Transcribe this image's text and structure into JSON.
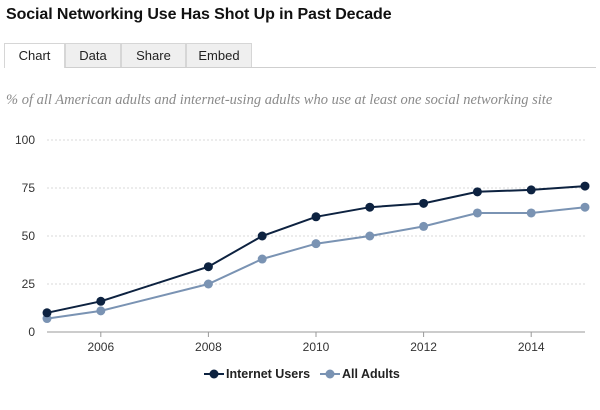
{
  "title": "Social Networking Use Has Shot Up in Past Decade",
  "tabs": [
    {
      "label": "Chart",
      "active": true
    },
    {
      "label": "Data",
      "active": false
    },
    {
      "label": "Share",
      "active": false
    },
    {
      "label": "Embed",
      "active": false
    }
  ],
  "subtitle": "% of all American adults and internet-using adults who use at least one social networking site",
  "colors": {
    "internet_users": "#0d2240",
    "all_adults": "#7a93b3",
    "grid": "#d9d9d9",
    "axis_text": "#333333"
  },
  "chart_data": {
    "type": "line",
    "title": "",
    "xlabel": "",
    "ylabel": "",
    "xlim": [
      2005,
      2015
    ],
    "ylim": [
      0,
      100
    ],
    "y_ticks": [
      0,
      25,
      50,
      75,
      100
    ],
    "x_ticks": [
      2006,
      2008,
      2010,
      2012,
      2014
    ],
    "grid": true,
    "legend_position": "bottom-center",
    "x": [
      2005,
      2006,
      2008,
      2009,
      2010,
      2011,
      2012,
      2013,
      2014,
      2015
    ],
    "series": [
      {
        "name": "Internet Users",
        "values": [
          10,
          16,
          34,
          50,
          60,
          65,
          67,
          73,
          74,
          76
        ]
      },
      {
        "name": "All Adults",
        "values": [
          7,
          11,
          25,
          38,
          46,
          50,
          55,
          62,
          62,
          65
        ]
      }
    ]
  }
}
